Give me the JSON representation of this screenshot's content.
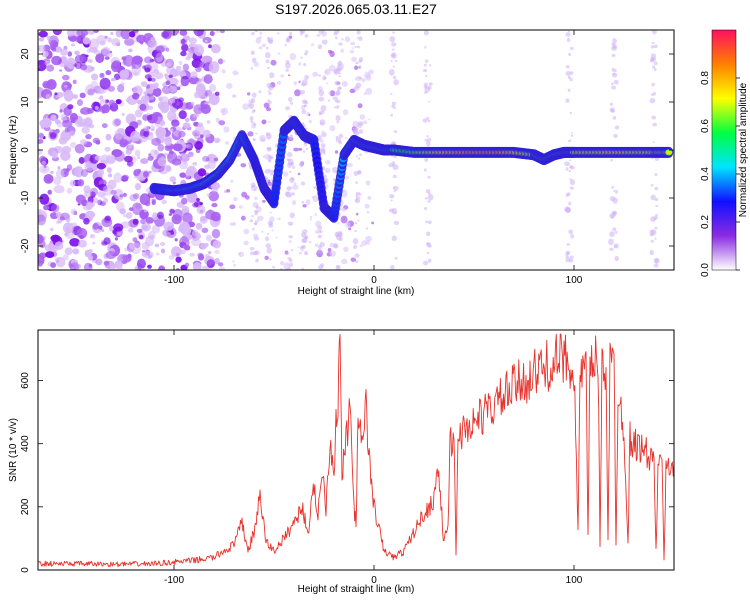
{
  "chart_data": [
    {
      "type": "heatmap",
      "title": "S197.2026.065.03.11.E27",
      "xlabel": "Height of straight line (km)",
      "ylabel": "Frequency (Hz)",
      "xlim": [
        -168,
        150
      ],
      "ylim": [
        -25,
        25
      ],
      "x_ticks": [
        -100,
        0,
        100
      ],
      "y_ticks": [
        -20,
        -10,
        0,
        10,
        20
      ],
      "colorbar": {
        "label": "Normalized spectral amplitude",
        "range": [
          0,
          1
        ],
        "ticks": [
          0.0,
          0.2,
          0.4,
          0.6,
          0.8
        ],
        "stops": [
          "#ffffff",
          "#8a2be2",
          "#1010ff",
          "#00e5ff",
          "#00ff40",
          "#ffff00",
          "#ff8000",
          "#ff1060"
        ]
      },
      "trace": {
        "name": "frequency ridge",
        "x": [
          -110,
          -100,
          -92,
          -85,
          -78,
          -72,
          -66,
          -60,
          -55,
          -50,
          -45,
          -40,
          -35,
          -30,
          -25,
          -20,
          -15,
          -10,
          -5,
          0,
          5,
          10,
          20,
          30,
          40,
          50,
          60,
          70,
          80,
          85,
          90,
          95,
          100,
          110,
          120,
          130,
          140,
          148
        ],
        "y": [
          -8,
          -8.5,
          -8,
          -7,
          -5,
          -2,
          3,
          -2,
          -8,
          -11,
          4,
          6,
          3,
          2,
          -12,
          -14,
          -1,
          2,
          1,
          0.5,
          0,
          0,
          -0.5,
          -0.5,
          -0.5,
          -0.5,
          -0.5,
          -0.5,
          -1,
          -2,
          -1,
          -0.5,
          -0.5,
          -0.5,
          -0.5,
          -0.5,
          -0.5,
          -0.5
        ],
        "amplitude": [
          0.35,
          0.4,
          0.45,
          0.5,
          0.55,
          0.5,
          0.45,
          0.35,
          0.3,
          0.35,
          0.4,
          0.4,
          0.4,
          0.35,
          0.3,
          0.35,
          0.45,
          0.5,
          0.55,
          0.6,
          0.6,
          0.65,
          0.7,
          0.8,
          0.9,
          0.95,
          0.95,
          0.85,
          0.75,
          0.7,
          0.7,
          0.75,
          0.8,
          0.8,
          0.85,
          0.8,
          0.8,
          0.75
        ]
      }
    },
    {
      "type": "line",
      "xlabel": "Height of straight line (km)",
      "ylabel": "SNR (10 * v/v)",
      "xlim": [
        -168,
        150
      ],
      "ylim": [
        0,
        760
      ],
      "x_ticks": [
        -100,
        0,
        100
      ],
      "y_ticks": [
        0,
        200,
        400,
        600
      ],
      "color": "#e8322c",
      "series": [
        {
          "name": "SNR",
          "x": [
            -168,
            -150,
            -130,
            -110,
            -90,
            -80,
            -70,
            -66,
            -63,
            -60,
            -57,
            -54,
            -50,
            -45,
            -40,
            -36,
            -33,
            -30,
            -28,
            -26,
            -24,
            -22,
            -20,
            -19,
            -18,
            -17,
            -16,
            -14,
            -12,
            -10,
            -9,
            -8,
            -6,
            -4,
            -2,
            0,
            5,
            10,
            15,
            20,
            25,
            28,
            30,
            32,
            35,
            37,
            38,
            40,
            41,
            42,
            45,
            50,
            60,
            70,
            80,
            90,
            95,
            100,
            102,
            103,
            104,
            106,
            107,
            108,
            110,
            112,
            113,
            114,
            116,
            117,
            118,
            120,
            121,
            122,
            125,
            127,
            128,
            130,
            135,
            140,
            141,
            142,
            144,
            145,
            146,
            148,
            150
          ],
          "y": [
            20,
            20,
            18,
            20,
            30,
            40,
            80,
            150,
            60,
            120,
            230,
            90,
            60,
            100,
            150,
            200,
            120,
            260,
            180,
            320,
            200,
            420,
            300,
            500,
            520,
            760,
            300,
            400,
            520,
            200,
            150,
            430,
            420,
            520,
            320,
            200,
            60,
            40,
            60,
            120,
            180,
            200,
            230,
            330,
            80,
            150,
            400,
            420,
            50,
            430,
            440,
            470,
            520,
            580,
            620,
            660,
            670,
            650,
            110,
            630,
            620,
            640,
            100,
            630,
            660,
            680,
            80,
            650,
            640,
            100,
            650,
            650,
            90,
            560,
            450,
            80,
            420,
            400,
            380,
            340,
            60,
            320,
            330,
            40,
            310,
            330,
            340
          ]
        }
      ]
    }
  ]
}
